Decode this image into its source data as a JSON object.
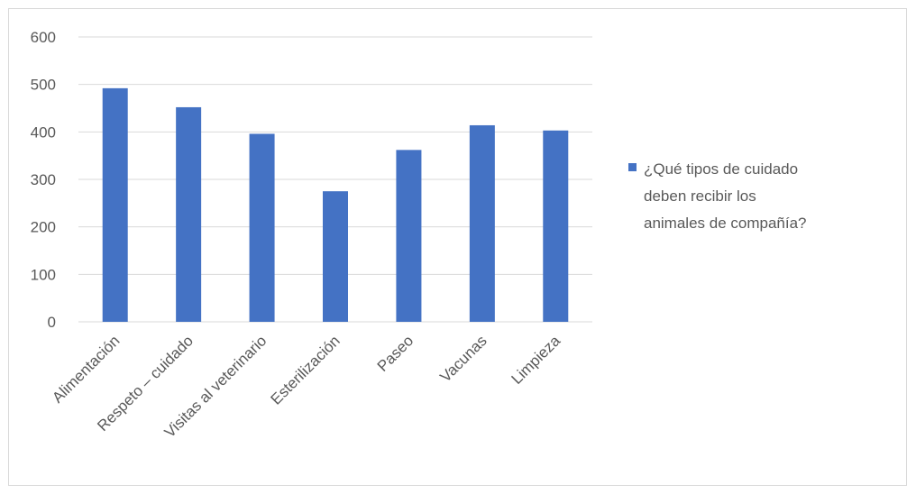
{
  "chart_data": {
    "type": "bar",
    "categories": [
      "Alimentación",
      "Respeto – cuidado",
      "Visitas al veterinario",
      "Esterilización",
      "Paseo",
      "Vacunas",
      "Limpieza"
    ],
    "series": [
      {
        "name": "¿Qué tipos de cuidado deben recibir los animales de compañía?",
        "values": [
          492,
          452,
          396,
          275,
          362,
          414,
          403
        ],
        "color": "#4472c4"
      }
    ],
    "title": "",
    "xlabel": "",
    "ylabel": "",
    "ylim": [
      0,
      600
    ],
    "yticks": [
      0,
      100,
      200,
      300,
      400,
      500,
      600
    ],
    "grid": true,
    "gridline_color": "#d9d9d9",
    "legend_position": "right",
    "legend_lines": [
      "¿Qué tipos de cuidado",
      "deben recibir los",
      "animales de compañía?"
    ]
  }
}
